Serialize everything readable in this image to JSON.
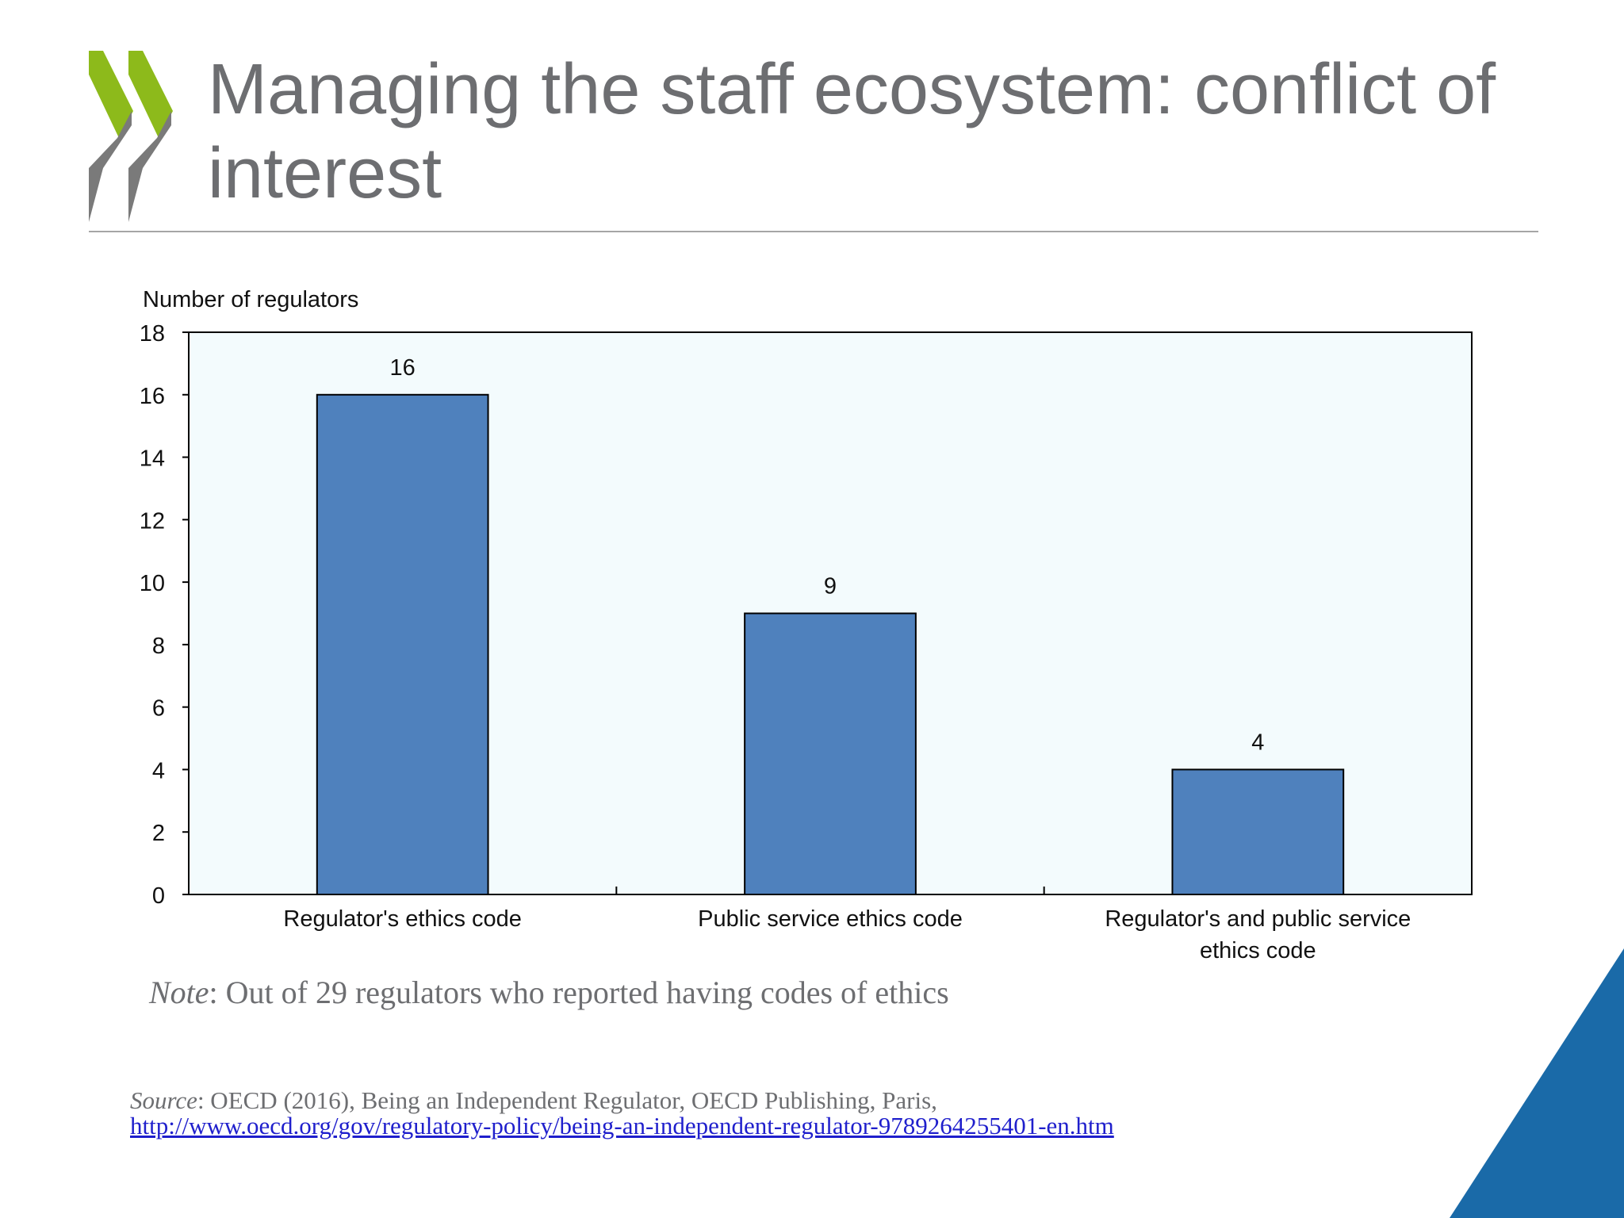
{
  "slide": {
    "title": "Managing the staff ecosystem: conflict of interest",
    "note_label": "Note",
    "note_text": ": Out of 29 regulators who reported having codes of ethics",
    "source_label": "Source",
    "source_text": ": OECD (2016), Being an Independent Regulator, OECD Publishing, Paris,",
    "source_url": "http://www.oecd.org/gov/regulatory-policy/being-an-independent-regulator-9789264255401-en.htm",
    "colors": {
      "title": "#6d6e71",
      "logo_green": "#8dba1b",
      "logo_grey": "#7a7a7a",
      "corner_blue": "#1a6aa8",
      "bar_fill": "#4f81bd",
      "plot_background": "#f3fbfd"
    },
    "icons": {
      "logo": "oecd-chevrons-logo",
      "corner": "corner-triangle-decoration"
    }
  },
  "chart_data": {
    "type": "bar",
    "title": "",
    "ylabel": "Number of regulators",
    "xlabel": "",
    "categories": [
      [
        "Regulator's ethics code"
      ],
      [
        "Public service ethics code"
      ],
      [
        "Regulator's and public service",
        "ethics code"
      ]
    ],
    "values": [
      16,
      9,
      4
    ],
    "data_labels": [
      "16",
      "9",
      "4"
    ],
    "ylim": [
      0,
      18
    ],
    "yticks": [
      0,
      2,
      4,
      6,
      8,
      10,
      12,
      14,
      16,
      18
    ],
    "grid": false,
    "legend": "none"
  }
}
